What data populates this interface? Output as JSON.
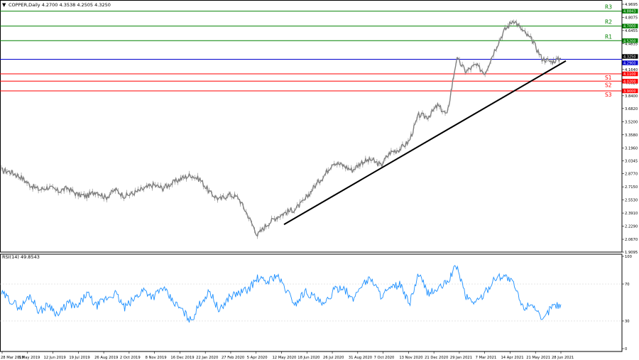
{
  "header": {
    "arrow": "▼",
    "title": "COPPER,Daily  4.2700 4.3538 4.2505 4.3250"
  },
  "rsi_header": "RSI(14) 49.8543",
  "colors": {
    "price": "#808080",
    "rsi": "#1e90ff",
    "resistance": "#008000",
    "support": "#ff0000",
    "current": "#0000cd",
    "trendline": "#000000",
    "grid": "#cccccc"
  },
  "chart_data": [
    {
      "type": "line",
      "series": [
        {
          "values": [
            2.92,
            2.9,
            2.84,
            2.74,
            2.68,
            2.71,
            2.66,
            2.7,
            2.62,
            2.6,
            2.66,
            2.58,
            2.68,
            2.6,
            2.64,
            2.69,
            2.74,
            2.7,
            2.76,
            2.82,
            2.86,
            2.8,
            2.64,
            2.56,
            2.62,
            2.58,
            2.36,
            2.12,
            2.25,
            2.34,
            2.4,
            2.44,
            2.55,
            2.72,
            2.85,
            3.02,
            2.98,
            2.92,
            3.02,
            3.05,
            2.98,
            3.14,
            3.18,
            3.28,
            3.6,
            3.58,
            3.72,
            3.6,
            4.3,
            4.14,
            4.22,
            4.12,
            4.4,
            4.64,
            4.78,
            4.64,
            4.52,
            4.3,
            4.26,
            4.3
          ]
        }
      ],
      "x_tick_labels": [
        "28 Mar 2019",
        "6 May 2019",
        "12 Jun 2019",
        "19 Jul 2019",
        "26 Aug 2019",
        "2 Oct 2019",
        "8 Nov 2019",
        "16 Dec 2019",
        "22 Jan 2020",
        "27 Feb 2020",
        "5 Apr 2020",
        "12 May 2020",
        "18 Jun 2020",
        "26 Jul 2020",
        "31 Aug 2020",
        "7 Oct 2020",
        "13 Nov 2020",
        "21 Dec 2020",
        "29 Jan 2021",
        "7 Mar 2021",
        "14 Apr 2021",
        "21 May 2021",
        "28 Jun 2021"
      ],
      "y_tick_labels": [
        "4.9695",
        "4.8075",
        "4.6455",
        "4.4835",
        "4.3215",
        "4.1640",
        "4.0020",
        "3.8400",
        "3.6820",
        "3.5200",
        "3.3580",
        "3.1960",
        "3.0345",
        "2.8770",
        "2.7150",
        "2.5530",
        "2.3910",
        "2.2290",
        "2.0670",
        "1.9095"
      ],
      "ylim": [
        1.9095,
        4.9695
      ],
      "levels": [
        {
          "label": "R3",
          "value": 4.8843,
          "tag": "4.8843"
        },
        {
          "label": "R2",
          "value": 4.7,
          "tag": "4.7000"
        },
        {
          "label": "R1",
          "value": 4.52,
          "tag": "4.5200"
        },
        {
          "label": "",
          "value": 4.29,
          "tag": "4.2900"
        },
        {
          "label": "S1",
          "value": 4.11,
          "tag": "4.1100"
        },
        {
          "label": "S2",
          "value": 4.02,
          "tag": "4.0200"
        },
        {
          "label": "S3",
          "value": 3.9,
          "tag": "3.9000"
        }
      ],
      "current_price": 4.325,
      "current_price_tag": "4.3250",
      "trendline": {
        "from": [
          0.29,
          2.25
        ],
        "to": [
          0.585,
          4.27
        ]
      }
    },
    {
      "type": "line",
      "series": [
        {
          "values": [
            60,
            52,
            44,
            58,
            40,
            48,
            36,
            50,
            44,
            60,
            46,
            54,
            60,
            44,
            54,
            64,
            56,
            66,
            52,
            42,
            30,
            50,
            62,
            40,
            56,
            60,
            64,
            76,
            72,
            80,
            64,
            48,
            62,
            56,
            46,
            62,
            68,
            52,
            70,
            76,
            58,
            64,
            70,
            48,
            80,
            60,
            64,
            72,
            90,
            56,
            50,
            60,
            76,
            80,
            70,
            44,
            50,
            28,
            46,
            48
          ]
        }
      ],
      "y_tick_labels": [
        "100",
        "70",
        "30",
        "0"
      ],
      "ylim": [
        0,
        100
      ]
    }
  ]
}
